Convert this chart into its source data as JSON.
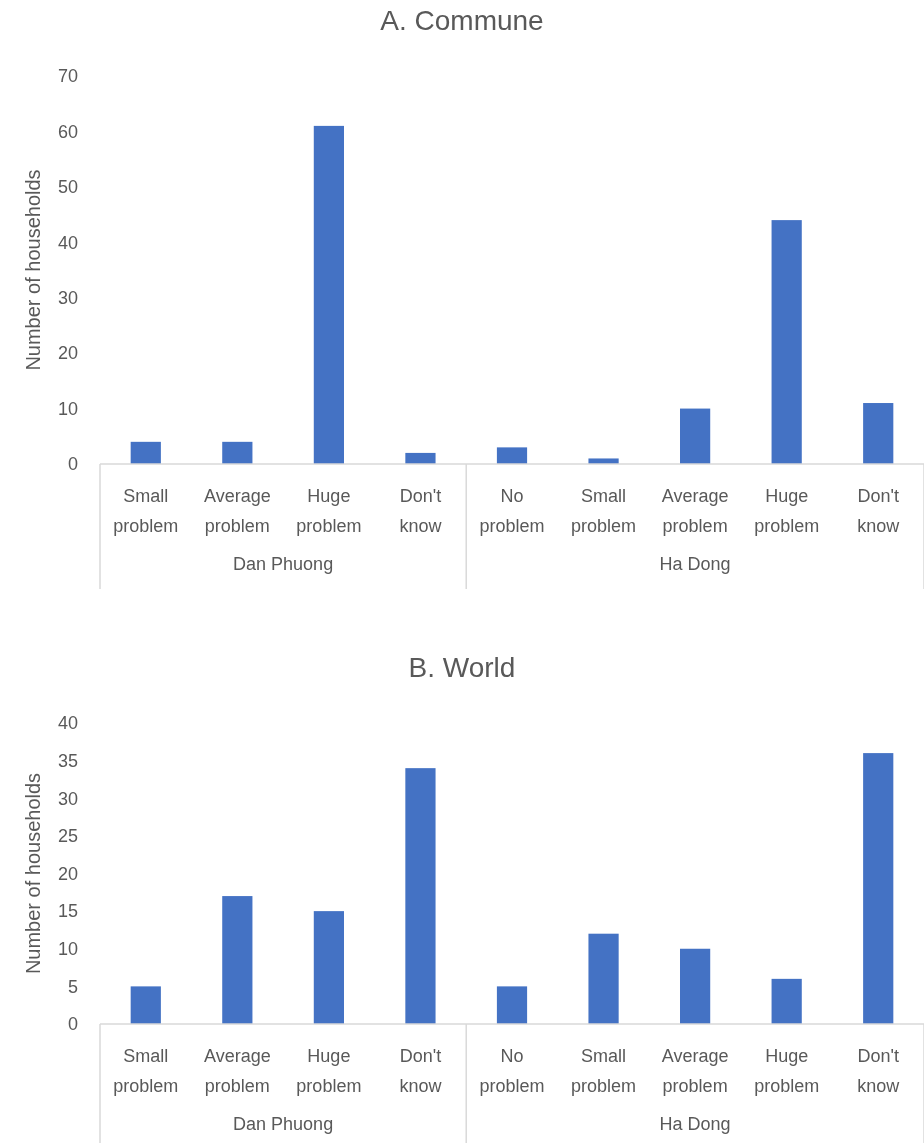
{
  "chart_data": [
    {
      "type": "bar",
      "title": "A. Commune",
      "ylabel": "Number of households",
      "categories": [
        "Small problem",
        "Average problem",
        "Huge problem",
        "Don't know",
        "No problem",
        "Small problem",
        "Average problem",
        "Huge problem",
        "Don't know"
      ],
      "values": [
        4,
        4,
        61,
        2,
        3,
        1,
        10,
        44,
        11
      ],
      "color": "#4472c4",
      "ylim": [
        0,
        70
      ],
      "yticks": [
        0,
        10,
        20,
        30,
        40,
        50,
        60,
        70
      ],
      "grid": false,
      "annotations": [
        "Dan Phuong",
        "Ha Dong"
      ]
    },
    {
      "type": "bar",
      "title": "B. World",
      "ylabel": "Number of households",
      "categories": [
        "Small problem",
        "Average problem",
        "Huge problem",
        "Don't know",
        "No problem",
        "Small problem",
        "Average problem",
        "Huge problem",
        "Don't know"
      ],
      "values": [
        5,
        17,
        15,
        34,
        5,
        12,
        10,
        6,
        36
      ],
      "color": "#4472c4",
      "ylim": [
        0,
        40
      ],
      "yticks": [
        0,
        5,
        10,
        15,
        20,
        25,
        30,
        35,
        40
      ],
      "grid": false,
      "annotations": [
        "Dan Phuong",
        "Ha Dong"
      ]
    }
  ]
}
